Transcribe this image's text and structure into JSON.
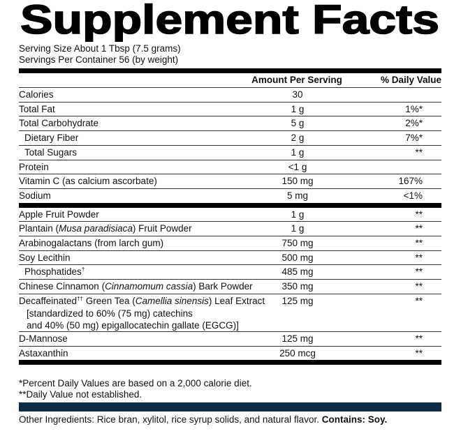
{
  "title": "Supplement Facts",
  "serving_size": "Serving Size About 1 Tbsp (7.5 grams)",
  "servings_per_container": "Servings Per Container 56 (by weight)",
  "table": {
    "header": [
      "Amount Per Serving",
      "% Daily Value"
    ],
    "sections": [
      [
        {
          "name": "Calories",
          "amount": "30"
        },
        {
          "name": "Total Fat",
          "amount": "1 g",
          "dv": "1%*"
        },
        {
          "name": "Total Carbohydrate",
          "amount": "5 g",
          "dv": "2%*",
          "sub": [
            {
              "name": "Dietary Fiber",
              "amount": "2 g",
              "dv": "7%*"
            },
            {
              "name": "Total Sugars",
              "amount": "1 g",
              "dv": "**"
            }
          ]
        },
        {
          "name": "Protein",
          "amount": "<1 g"
        },
        {
          "name": "Vitamin C (as calcium ascorbate)",
          "amount": "150 mg",
          "dv": "167%"
        },
        {
          "name": "Sodium",
          "amount": "5 mg",
          "dv": "<1%"
        }
      ],
      [
        {
          "name": "Apple Fruit Powder",
          "amount": "1 g",
          "dv": "**"
        },
        {
          "name": [
            "Plantain (",
            {
              "t": "Musa paradisiaca",
              "s": "i"
            },
            ") Fruit Powder"
          ],
          "amount": "1 g",
          "dv": "**"
        },
        {
          "name": "Arabinogalactans (from larch gum)",
          "amount": "750 mg",
          "dv": "**"
        },
        {
          "name": "Soy Lecithin",
          "amount": "500 mg",
          "dv": "**",
          "sub": [
            {
              "name": [
                "Phosphatides",
                {
                  "t": "†",
                  "s": "sup"
                }
              ],
              "amount": "485 mg",
              "dv": "**"
            }
          ]
        },
        {
          "name": [
            "Chinese Cinnamon (",
            {
              "t": "Cinnamomum cassia",
              "s": "i"
            },
            ") Bark Powder"
          ],
          "amount": "350 mg",
          "dv": "**"
        },
        {
          "name": [
            "Decaffeinated",
            {
              "t": "††",
              "s": "sup"
            },
            " Green Tea (",
            {
              "t": "Camellia sinensis",
              "s": "i"
            },
            ") Leaf Extract"
          ],
          "amount": "125 mg",
          "dv": "**",
          "notes": [
            "[standardized to 60% (75 mg) catechins",
            "and 40% (50 mg) epigallocatechin gallate (EGCG)]"
          ]
        },
        {
          "name": "D-Mannose",
          "amount": "125 mg",
          "dv": "**"
        },
        {
          "name": "Astaxanthin",
          "amount": "250 mcg",
          "dv": "**"
        }
      ]
    ]
  },
  "footnotes": [
    "*Percent Daily Values are based on a 2,000 calorie diet.",
    "**Daily Value not established."
  ],
  "other_ingredients": {
    "text": "Other Ingredients: Rice bran, xylitol, rice syrup solids, and natural flavor. ",
    "bold": "Contains: Soy."
  }
}
